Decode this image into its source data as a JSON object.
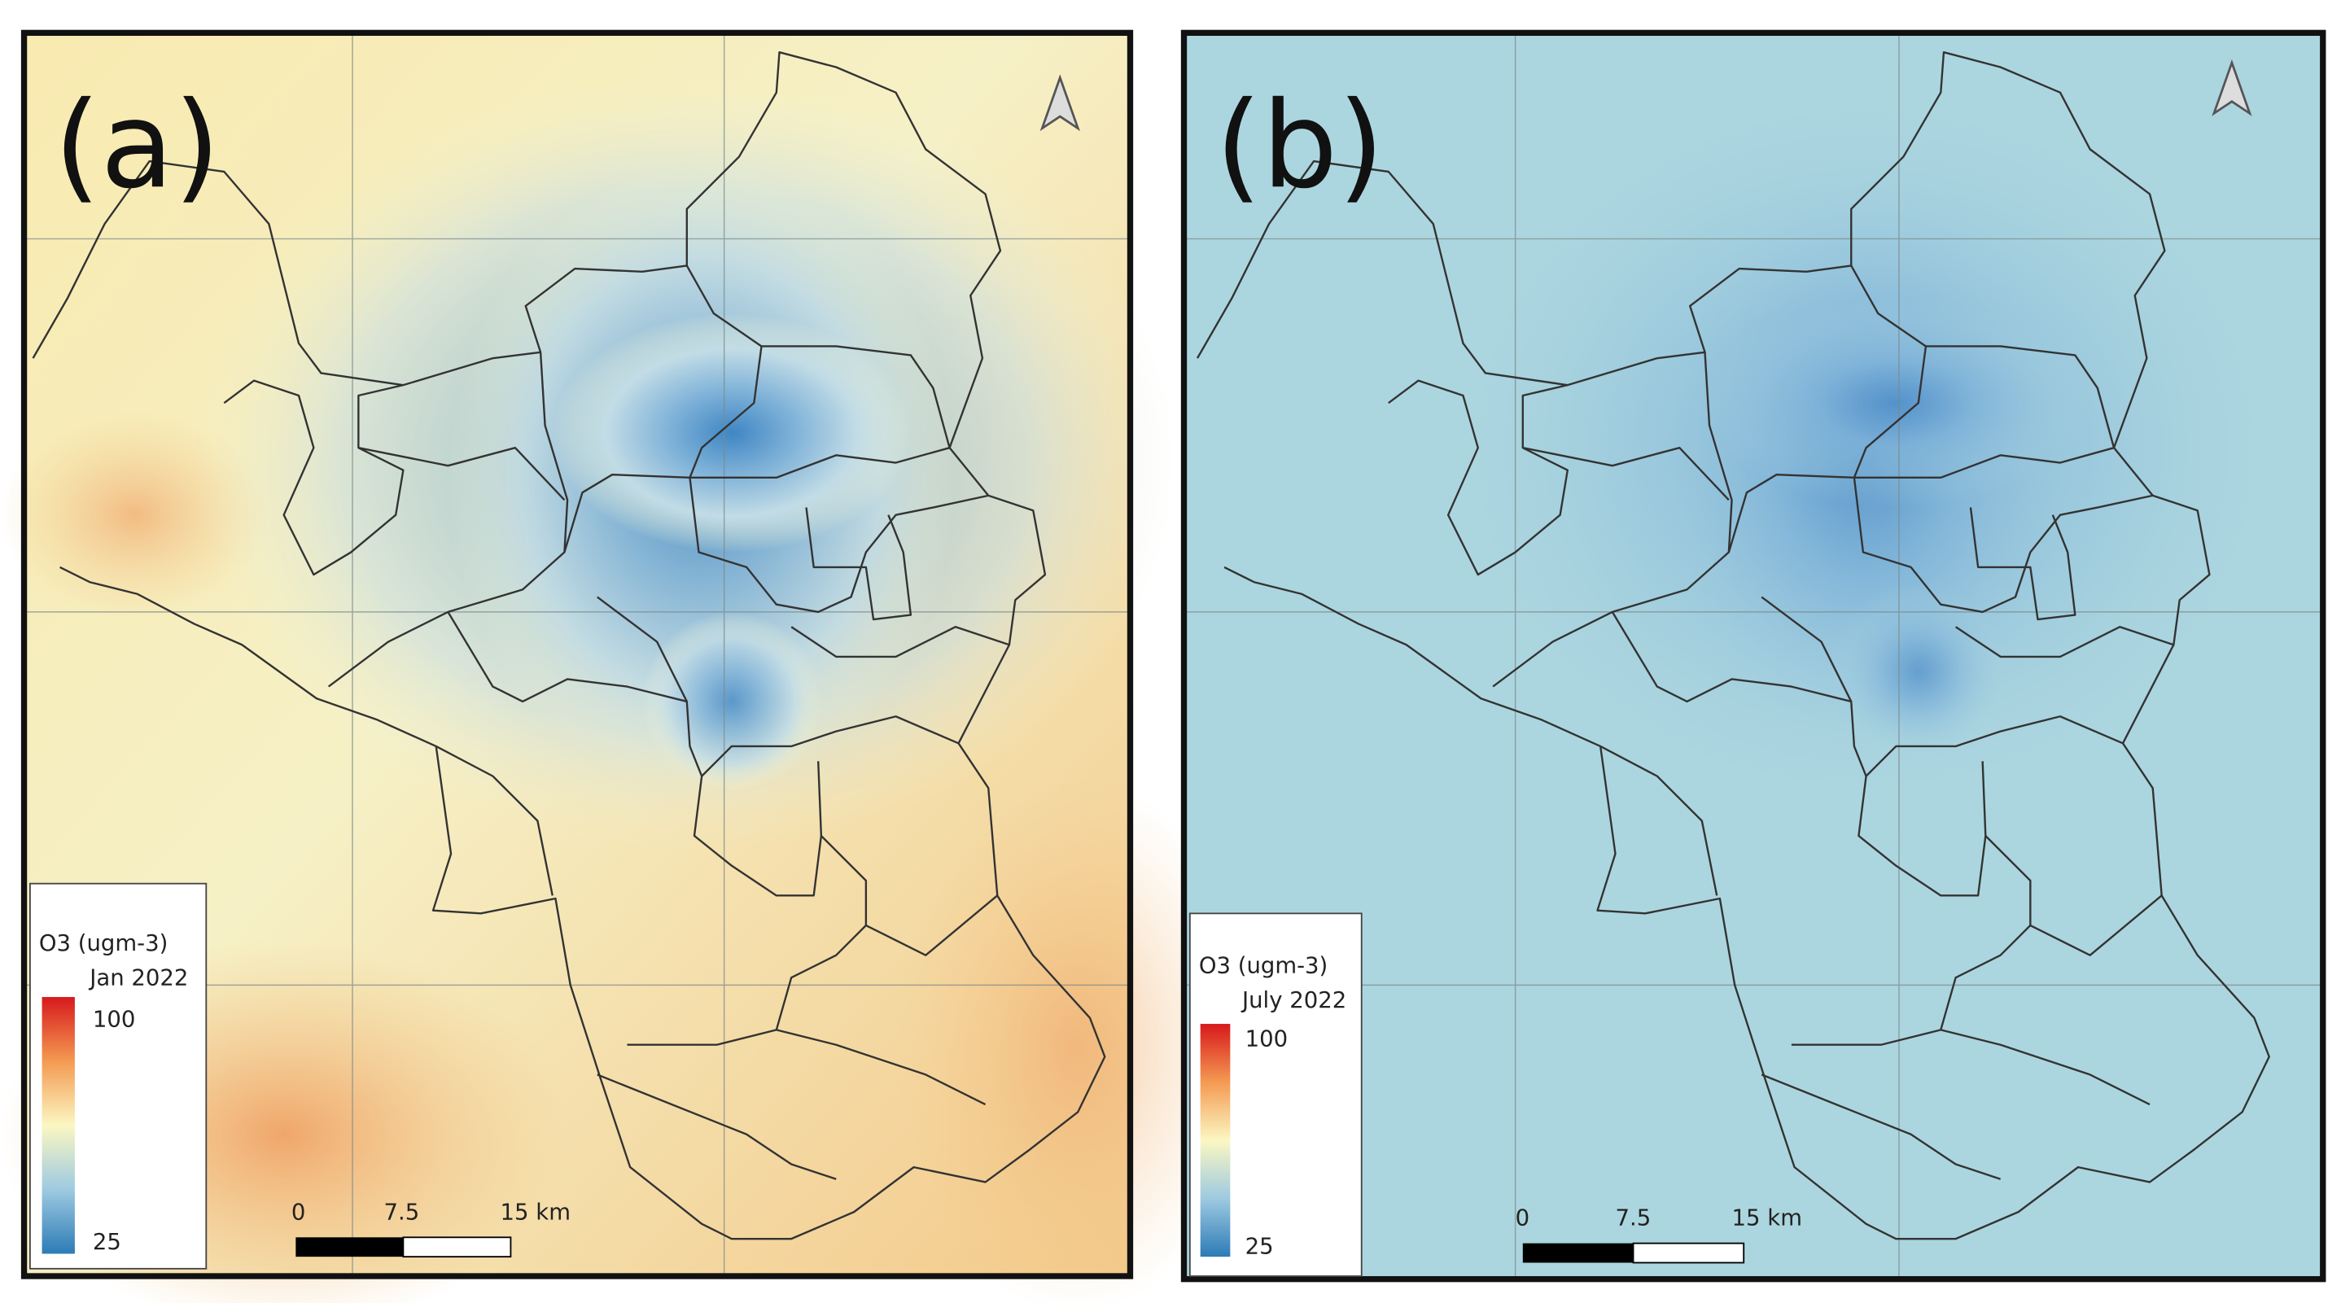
{
  "panels": [
    {
      "label": "(a)",
      "legend": {
        "title": "O3 (ugm-3)",
        "period": "Jan 2022",
        "max": "100",
        "min": "25"
      },
      "scale_bar": [
        "0",
        "7.5",
        "15 km"
      ]
    },
    {
      "label": "(b)",
      "legend": {
        "title": "O3 (ugm-3)",
        "period": "July 2022",
        "max": "100",
        "min": "25"
      },
      "scale_bar": [
        "0",
        "7.5",
        "15 km"
      ]
    }
  ]
}
